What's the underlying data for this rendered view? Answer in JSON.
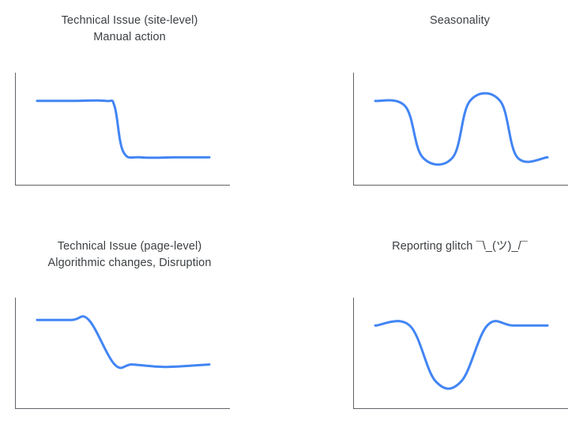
{
  "chart_data": [
    {
      "type": "line",
      "title": "Technical Issue (site-level)",
      "subtitle": "Manual action",
      "axes": {
        "x_ticks": false,
        "y_ticks": false,
        "grid": false
      },
      "series": [
        {
          "color": "#4285f4",
          "x": [
            0,
            20,
            40,
            45,
            50,
            60,
            80,
            100
          ],
          "y": [
            75,
            75,
            75,
            70,
            30,
            25,
            25,
            25
          ]
        }
      ]
    },
    {
      "type": "line",
      "title": "Seasonality",
      "subtitle": "",
      "axes": {
        "x_ticks": false,
        "y_ticks": false,
        "grid": false
      },
      "series": [
        {
          "color": "#4285f4",
          "x": [
            0,
            14,
            22,
            36,
            44,
            58,
            66,
            80
          ],
          "y": [
            75,
            70,
            25,
            25,
            75,
            75,
            25,
            25
          ]
        }
      ]
    },
    {
      "type": "line",
      "title": "Technical Issue (page-level)",
      "subtitle": "Algorithmic changes, Disruption",
      "axes": {
        "x_ticks": false,
        "y_ticks": false,
        "grid": false
      },
      "series": [
        {
          "color": "#4285f4",
          "x": [
            0,
            20,
            30,
            45,
            55,
            70,
            80,
            100
          ],
          "y": [
            80,
            80,
            80,
            40,
            40,
            38,
            38,
            40
          ]
        }
      ]
    },
    {
      "type": "line",
      "title": "Reporting glitch ¯\\_(ツ)_/¯",
      "subtitle": "",
      "axes": {
        "x_ticks": false,
        "y_ticks": false,
        "grid": false
      },
      "series": [
        {
          "color": "#4285f4",
          "x": [
            0,
            20,
            35,
            50,
            65,
            80,
            100
          ],
          "y": [
            75,
            75,
            25,
            25,
            75,
            75,
            75
          ]
        }
      ]
    }
  ],
  "style": {
    "line_color": "#4285f4",
    "axis_color": "#5f6368",
    "text_color": "#3c4043"
  }
}
